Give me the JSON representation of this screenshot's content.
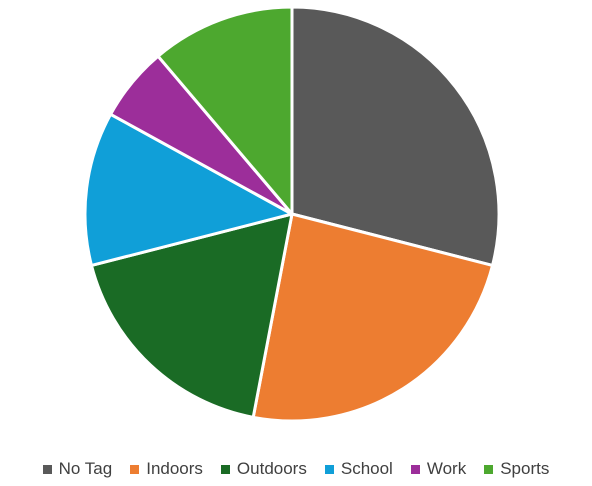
{
  "chart_data": {
    "type": "pie",
    "title": "",
    "categories": [
      "No Tag",
      "Indoors",
      "Outdoors",
      "School",
      "Work",
      "Sports"
    ],
    "values": [
      29,
      24,
      18,
      12,
      5.8,
      11.2
    ],
    "colors": [
      "#595959",
      "#ED7D31",
      "#1A6B25",
      "#109FD8",
      "#9C2E9A",
      "#4DA82F"
    ],
    "legend_position": "bottom"
  }
}
